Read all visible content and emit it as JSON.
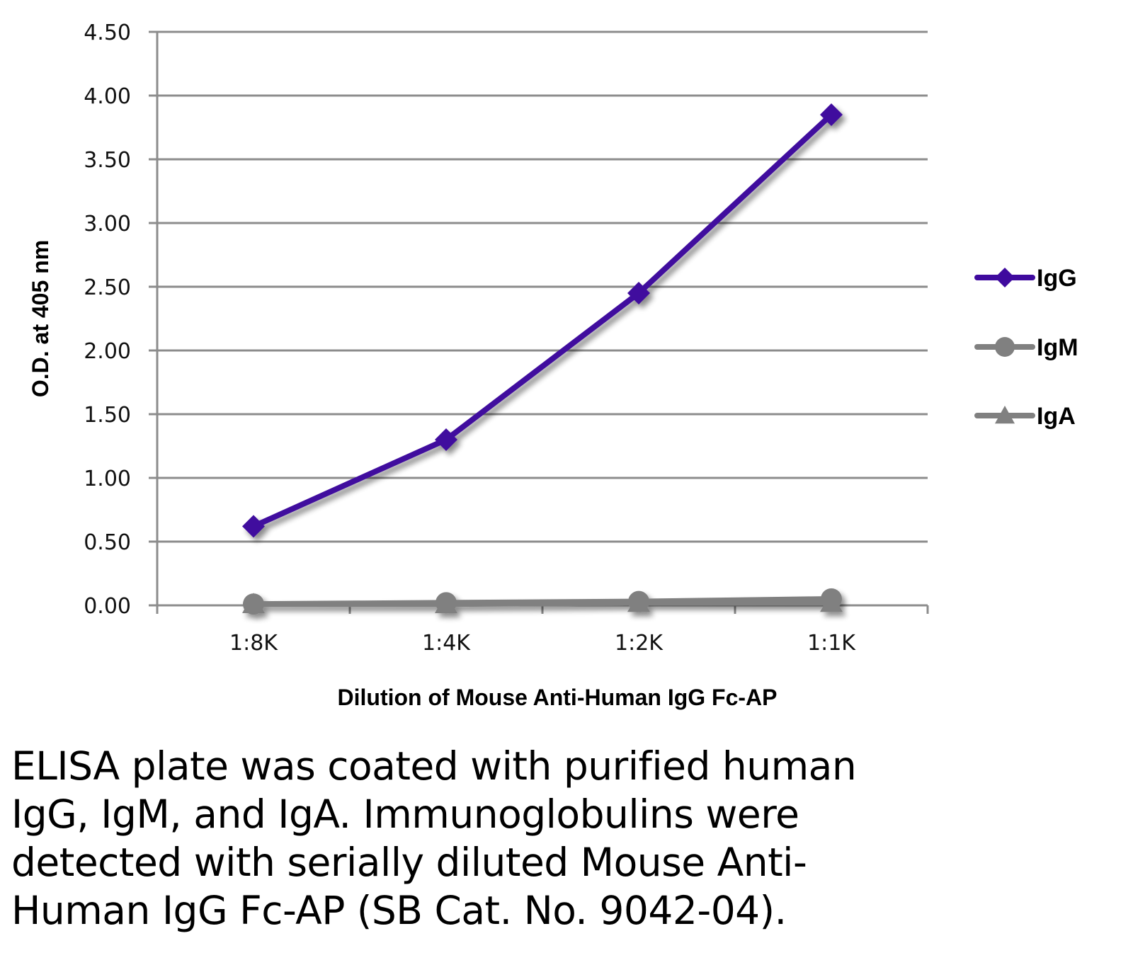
{
  "chart_data": {
    "type": "line",
    "title": "",
    "xlabel": "Dilution of Mouse Anti-Human IgG Fc-AP",
    "ylabel": "O.D. at 405 nm",
    "categories": [
      "1:8K",
      "1:4K",
      "1:2K",
      "1:1K"
    ],
    "ylim": [
      0,
      4.5
    ],
    "yticks": [
      "0.00",
      "0.50",
      "1.00",
      "1.50",
      "2.00",
      "2.50",
      "3.00",
      "3.50",
      "4.00",
      "4.50"
    ],
    "ytick_values": [
      0,
      0.5,
      1.0,
      1.5,
      2.0,
      2.5,
      3.0,
      3.5,
      4.0,
      4.5
    ],
    "grid": true,
    "legend_position": "right",
    "series": [
      {
        "name": "IgG",
        "marker": "diamond",
        "color": "#3f0a9e",
        "values": [
          0.62,
          1.3,
          2.45,
          3.85
        ]
      },
      {
        "name": "IgM",
        "marker": "circle",
        "color": "#808080",
        "values": [
          0.01,
          0.02,
          0.03,
          0.05
        ]
      },
      {
        "name": "IgA",
        "marker": "triangle",
        "color": "#808080",
        "values": [
          0.01,
          0.01,
          0.02,
          0.02
        ]
      }
    ]
  },
  "caption": "ELISA plate was coated with purified human IgG, IgM, and IgA.  Immunoglobulins were detected with serially diluted Mouse Anti-Human IgG Fc-AP (SB Cat. No. 9042-04)."
}
